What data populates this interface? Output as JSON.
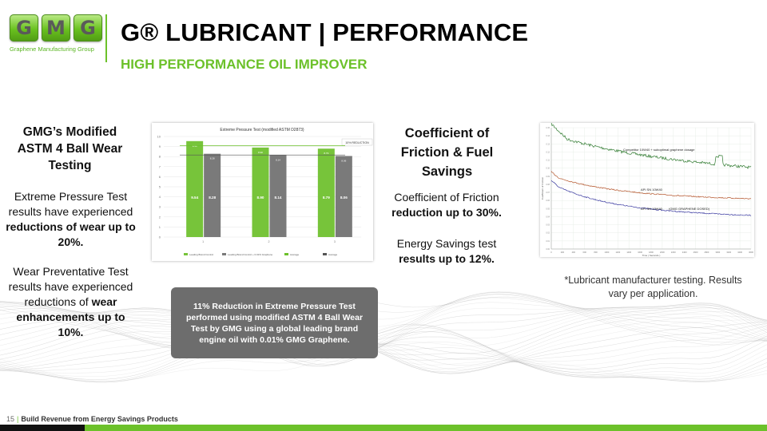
{
  "logo": {
    "letters": [
      "G",
      "M",
      "G"
    ],
    "tagline": "Graphene Manufacturing Group"
  },
  "title": "G® LUBRICANT | PERFORMANCE",
  "subtitle": "HIGH PERFORMANCE OIL IMPROVER",
  "left": {
    "heading": "GMG’s Modified ASTM 4 Ball Wear Testing",
    "p1_pre": "Extreme Pressure Test results have experienced ",
    "p1_bold": "reductions of wear up to 20%.",
    "p2_pre": "Wear Preventative Test results have experienced reductions of ",
    "p2_bold": "wear enhancements up to 10%."
  },
  "callout": "11% Reduction in Extreme Pressure Test performed using modified ASTM 4 Ball Wear Test by GMG using a global leading brand engine oil with 0.01% GMG Graphene.",
  "middle": {
    "heading": "Coefficient of Friction & Fuel Savings",
    "p1_pre": "Coefficient of Friction ",
    "p1_bold": "reduction up to 30%.",
    "p2_pre": "Energy Savings test ",
    "p2_bold": "results up to 12%."
  },
  "footnote": "*Lubricant manufacturer testing. Results vary per application.",
  "footer": {
    "page": "15",
    "text": "Build Revenue from Energy Savings Products"
  },
  "colors": {
    "brand_green": "#6cc12a",
    "callout_bg": "#6d6d6d",
    "bar_green": "#77c43a",
    "bar_gray": "#7a7a7a"
  },
  "chart_data": [
    {
      "type": "bar",
      "title": "Extreme Pressure Test (modified ASTM D2873)",
      "annotation": "10% REDUCTION",
      "categories": [
        "1",
        "2",
        "3"
      ],
      "series": [
        {
          "name": "Leading Brand Control",
          "values": [
            9.54,
            8.9,
            8.79
          ]
        },
        {
          "name": "Leading Brand Control + 0.01% Graphene",
          "values": [
            8.28,
            8.14,
            8.06
          ]
        }
      ],
      "ylim": [
        0,
        10
      ],
      "yticks": [
        "0",
        "1",
        "2",
        "3",
        "4",
        "5",
        "6",
        "7",
        "8",
        "9",
        "10"
      ],
      "legend_extra": [
        "Average",
        "Average"
      ]
    },
    {
      "type": "line",
      "xlabel": "Time ( Seconds )",
      "ylabel": "Coefficient of Friction",
      "annotations": [
        "Competitor 10W40 + suboptimal graphene dosage",
        "API SN 10W40",
        "API SN 10W40",
        "(GMG GRAPHENE DOSED)"
      ],
      "series": [
        {
          "name": "Competitor 10W40 + suboptimal graphene dosage",
          "trend": "high, noisy, declining"
        },
        {
          "name": "API SN 10W40",
          "trend": "middle, slowly declining"
        },
        {
          "name": "API SN 10W40 (GMG GRAPHENE DOSED)",
          "trend": "lowest, declining"
        }
      ],
      "xticks": [
        "0",
        "200",
        "400",
        "600",
        "800",
        "1000",
        "1200",
        "1400",
        "1600",
        "1800",
        "2000",
        "2200",
        "2400",
        "2600",
        "2800",
        "3000",
        "3200",
        "3400",
        "3600"
      ]
    }
  ]
}
